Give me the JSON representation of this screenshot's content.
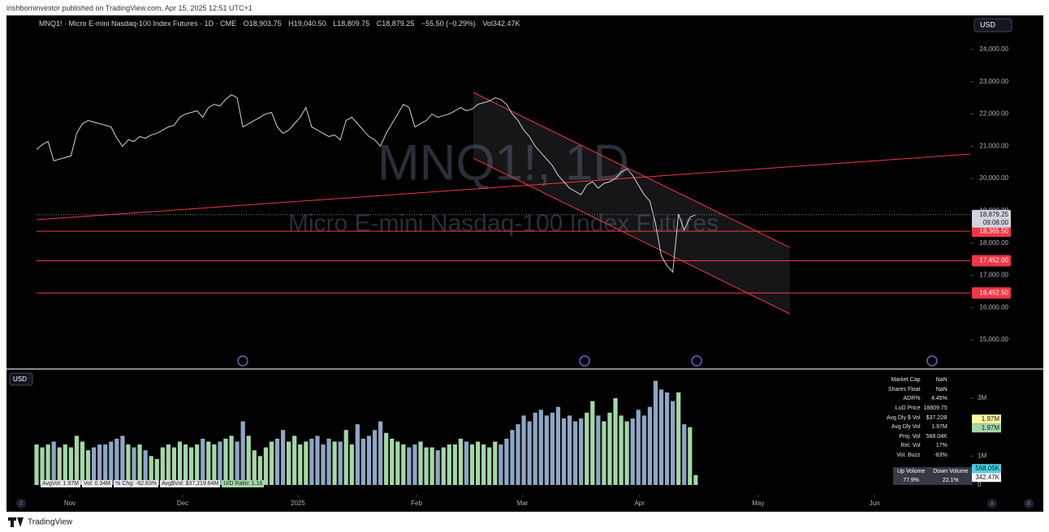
{
  "header": {
    "publisher": "irishborninvestor published on TradingView.com, Apr 15, 2025 12:51 UTC+1",
    "symbol": "MNQ1! · Micro E-mini Nasdaq-100 Index Futures · 1D · CME",
    "ohlc": [
      "O18,903.75",
      "H19,040.50",
      "L18,809.75",
      "C18,879.25",
      "−55.50 (−0.29%)",
      "Vol342.47K"
    ],
    "currency": "USD"
  },
  "watermark": {
    "line1": "MNQ1!, 1D",
    "line2": "Micro E-mini Nasdaq-100 Index Futures"
  },
  "chart_data": [
    {
      "type": "line",
      "series": [
        {
          "name": "MNQ1!",
          "color": "#d1d4dc",
          "values": [
            20900,
            21050,
            21150,
            20550,
            20600,
            20650,
            20700,
            21400,
            21700,
            21800,
            21750,
            21700,
            21650,
            21600,
            21250,
            21000,
            21200,
            21150,
            21300,
            21250,
            21350,
            21400,
            21500,
            21600,
            21650,
            21900,
            22000,
            22050,
            22100,
            21900,
            22200,
            22300,
            22250,
            22450,
            22600,
            22500,
            21600,
            21700,
            21800,
            21900,
            22000,
            22050,
            21600,
            21400,
            21500,
            21700,
            21900,
            22200,
            21600,
            21500,
            21400,
            21300,
            21350,
            21200,
            21800,
            21900,
            21700,
            21500,
            21300,
            21200,
            21000,
            21400,
            21700,
            22000,
            22300,
            22200,
            21600,
            21700,
            21800,
            22000,
            21900,
            21950,
            22000,
            22100,
            22200,
            22100,
            22150,
            22300,
            22350,
            22400,
            22500,
            22450,
            22300,
            22000,
            21800,
            21500,
            21300,
            21000,
            20800,
            20600,
            20400,
            20100,
            19900,
            19700,
            19600,
            19500,
            19800,
            19900,
            19700,
            19850,
            19900,
            20000,
            20200,
            20300,
            20100,
            19800,
            19500,
            19300,
            18600,
            17600,
            17300,
            17100,
            18900,
            18400,
            18800,
            18879.25
          ]
        }
      ],
      "xlim": [
        -4.96,
        162.9
      ],
      "xticks": [
        {
          "value": 5.8,
          "label": "Nov"
        },
        {
          "value": 25.5,
          "label": "Dec"
        },
        {
          "value": 45.6,
          "label": "2025"
        },
        {
          "value": 66.3,
          "label": "Feb"
        },
        {
          "value": 84.8,
          "label": "Mar"
        },
        {
          "value": 105.2,
          "label": "Apr"
        },
        {
          "value": 125.9,
          "label": "May"
        },
        {
          "value": 146.2,
          "label": "Jun"
        }
      ],
      "ylim": [
        14146,
        25031
      ],
      "yticks": [
        {
          "value": 15000,
          "label": "15,000.00"
        },
        {
          "value": 16000,
          "label": "16,000.00"
        },
        {
          "value": 17000,
          "label": "17,000.00"
        },
        {
          "value": 18000,
          "label": "18,000.00"
        },
        {
          "value": 19000,
          "label": "19,000.00"
        },
        {
          "value": 20000,
          "label": "20,000.00"
        },
        {
          "value": 21000,
          "label": "21,000.00"
        },
        {
          "value": 22000,
          "label": "22,000.00"
        },
        {
          "value": 23000,
          "label": "23,000.00"
        },
        {
          "value": 24000,
          "label": "24,000.00"
        }
      ],
      "last_price": {
        "value": 18879.25,
        "label": "18,879.25",
        "countdown": "09:08:00"
      },
      "levels": [
        {
          "value": 18365.5,
          "label": "18,365.50"
        },
        {
          "value": 17452,
          "label": "17,452.00"
        },
        {
          "value": 16452.5,
          "label": "16,452.50"
        }
      ],
      "level_color": "#f23645",
      "trend_lines": [
        {
          "x": [
            0,
            162.9
          ],
          "y": [
            18721,
            20757
          ]
        },
        {
          "x": [
            76.2,
            131.4
          ],
          "y": [
            22668,
            17866
          ]
        },
        {
          "x": [
            76.2,
            131.4
          ],
          "y": [
            20631,
            15805
          ]
        }
      ]
    },
    {
      "type": "bar",
      "currency": "USD",
      "values": [
        1.4,
        1.3,
        1.4,
        1.5,
        1.3,
        1.4,
        1.3,
        1.7,
        1.5,
        1.2,
        1.3,
        1.4,
        1.4,
        1.5,
        1.6,
        1.7,
        1.4,
        1.3,
        1.4,
        1.2,
        1.0,
        0.9,
        1.3,
        1.4,
        1.3,
        1.5,
        1.4,
        1.3,
        1.4,
        1.6,
        1.5,
        1.4,
        1.5,
        1.6,
        1.7,
        1.5,
        2.2,
        1.7,
        1.2,
        1.0,
        1.3,
        1.5,
        1.6,
        1.9,
        1.5,
        1.7,
        1.4,
        1.5,
        1.6,
        1.7,
        1.4,
        1.6,
        1.5,
        1.5,
        1.9,
        1.4,
        2.1,
        1.6,
        1.7,
        1.9,
        2.2,
        1.8,
        1.6,
        1.5,
        1.4,
        1.3,
        1.4,
        1.5,
        1.3,
        1.3,
        1.2,
        1.3,
        1.4,
        1.4,
        1.6,
        1.5,
        1.4,
        1.5,
        1.4,
        1.3,
        1.5,
        1.4,
        1.6,
        1.9,
        2.1,
        2.4,
        2.2,
        2.5,
        2.6,
        2.4,
        2.5,
        2.7,
        2.3,
        2.4,
        2.2,
        2.3,
        2.5,
        2.9,
        2.4,
        2.2,
        2.5,
        3.0,
        2.4,
        2.2,
        2.3,
        2.6,
        2.4,
        2.7,
        3.6,
        3.3,
        3.2,
        2.9,
        3.2,
        2.1,
        2.0,
        0.34247
      ],
      "up_color": "#a5d6a7",
      "down_color": "#8fa6c4",
      "ylim": [
        0,
        3.87
      ],
      "yticks": [
        {
          "value": 0,
          "label": "0"
        },
        {
          "value": 1,
          "label": "1M"
        },
        {
          "value": 3,
          "label": "3M"
        }
      ],
      "tags": [
        {
          "value": 1.97,
          "label": "1.97M",
          "color": "#fff59d"
        },
        {
          "value": 1.97,
          "label": "1.97M",
          "color": "#a5d6a7"
        },
        {
          "value": 0.56805,
          "label": "568.05K",
          "color": "#4dd0e1"
        },
        {
          "value": 0.34247,
          "label": "342.47K",
          "color": "#ffffff"
        }
      ],
      "indicator_labels": [
        "AvgVol: 1.97M",
        "Vol: 0.34M",
        "% Chg: -82.63%",
        "Avg$Vol: $37,219.64M",
        "U/D Ratio: 1.16"
      ]
    }
  ],
  "stats": {
    "rows": [
      [
        "Market Cap",
        "NaN"
      ],
      [
        "Shares Float",
        "NaN"
      ],
      [
        "ADR%",
        "4.45%"
      ],
      [
        "LoD Price",
        "18809.75"
      ],
      [
        "Avg Dly $ Vol",
        "$37.22B"
      ],
      [
        "Avg Dly Vol",
        "1.97M"
      ],
      [
        "Proj. Vol",
        "568.04K"
      ],
      [
        "Rel. Vol",
        "17%"
      ],
      [
        "Vol. Buzz",
        "-83%"
      ]
    ],
    "updown_header": [
      "Up Volume",
      "Down Volume"
    ],
    "updown_values": [
      "77.9%",
      "22.1%"
    ]
  },
  "footer": {
    "brand": "TradingView",
    "buttons": [
      "Z",
      "A",
      "B"
    ]
  }
}
